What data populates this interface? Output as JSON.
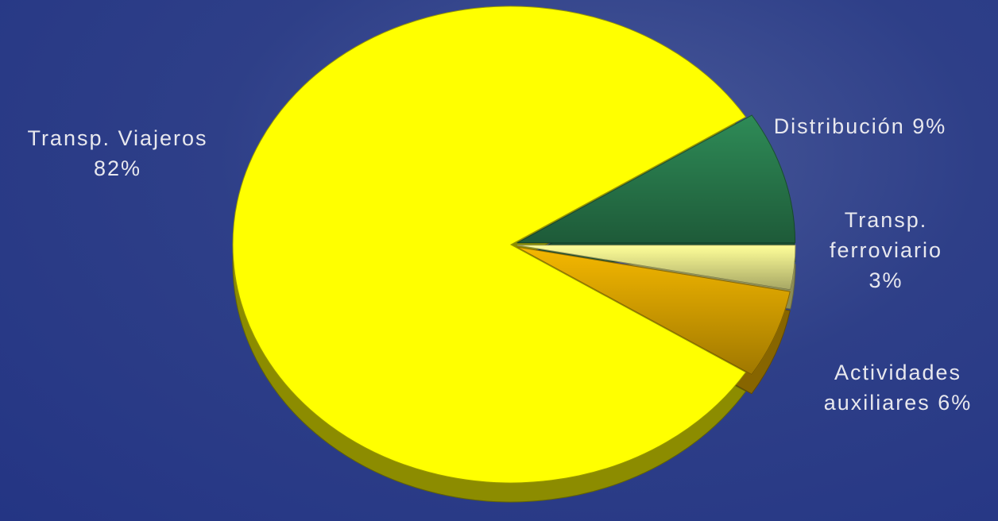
{
  "chart_data": {
    "type": "pie",
    "categories": [
      "Distribución",
      "Transp. ferroviario",
      "Actividades auxiliares",
      "Transp. Viajeros"
    ],
    "values": [
      9,
      3,
      6,
      82
    ],
    "value_labels": [
      "9%",
      "3%",
      "6%",
      "82%"
    ],
    "colors": [
      "#2e8b57",
      "#ffff99",
      "#f5b800",
      "#ffff00"
    ]
  }
}
